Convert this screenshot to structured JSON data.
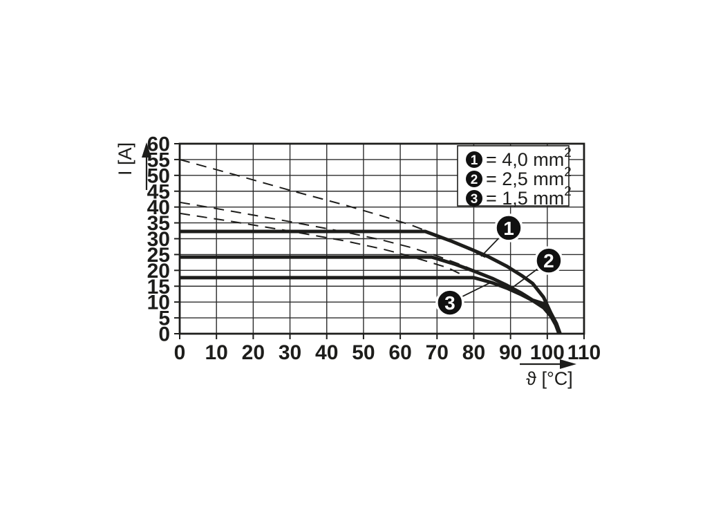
{
  "figure": {
    "background": "#ffffff",
    "ink_color": "#1d1d1b"
  },
  "chart_data": {
    "type": "line",
    "title": "",
    "xlabel": "ϑ [°C]",
    "ylabel": "I [A]",
    "xlim": [
      0,
      110
    ],
    "ylim": [
      0,
      60
    ],
    "x_ticks": [
      0,
      10,
      20,
      30,
      40,
      50,
      60,
      70,
      80,
      90,
      100,
      110
    ],
    "y_ticks": [
      0,
      5,
      10,
      15,
      20,
      25,
      30,
      35,
      40,
      45,
      50,
      55,
      60
    ],
    "grid": true,
    "legend": {
      "position": "top-right",
      "entries": [
        {
          "marker": "1",
          "text": "= 4,0 mm",
          "sup": "2"
        },
        {
          "marker": "2",
          "text": "= 2,5 mm",
          "sup": "2"
        },
        {
          "marker": "3",
          "text": "= 1,5 mm",
          "sup": "2"
        }
      ]
    },
    "series": [
      {
        "name": "curve-1-4,0mm2",
        "rated_current_A": 32,
        "style": "solid",
        "points": [
          [
            0,
            32.3
          ],
          [
            66.8,
            32.3
          ],
          [
            74,
            29.2
          ],
          [
            79,
            26.8
          ],
          [
            84,
            24.3
          ],
          [
            89,
            21.3
          ],
          [
            93,
            18.4
          ],
          [
            96,
            15.9
          ],
          [
            99,
            11.5
          ],
          [
            101,
            6.5
          ],
          [
            102.5,
            3.2
          ],
          [
            103.5,
            0
          ]
        ]
      },
      {
        "name": "curve-2-2,5mm2",
        "rated_current_A": 24,
        "style": "solid",
        "points": [
          [
            0,
            24.2
          ],
          [
            68.6,
            24.2
          ],
          [
            75,
            21.9
          ],
          [
            80,
            19.8
          ],
          [
            85,
            17.5
          ],
          [
            89,
            15.3
          ],
          [
            93,
            12.8
          ],
          [
            96,
            10.6
          ],
          [
            99,
            9.5
          ],
          [
            101,
            6.0
          ],
          [
            102.3,
            3.0
          ],
          [
            103.3,
            0
          ]
        ]
      },
      {
        "name": "curve-3-1,5mm2",
        "rated_current_A": 17.5,
        "style": "solid",
        "points": [
          [
            0,
            17.7
          ],
          [
            80,
            17.7
          ],
          [
            85,
            16.1
          ],
          [
            89,
            14.4
          ],
          [
            93,
            12.3
          ],
          [
            96,
            10.5
          ],
          [
            99,
            8.2
          ],
          [
            101,
            5.5
          ],
          [
            102.3,
            2.8
          ],
          [
            103.2,
            0
          ]
        ]
      },
      {
        "name": "dashed-upper",
        "style": "dashed",
        "points": [
          [
            0,
            55
          ],
          [
            15,
            50.2
          ],
          [
            30,
            45.3
          ],
          [
            45,
            40.6
          ],
          [
            55,
            37.2
          ],
          [
            63,
            34.3
          ],
          [
            70,
            31.2
          ],
          [
            76,
            28.1
          ],
          [
            81,
            25.3
          ],
          [
            84,
            23.7
          ]
        ]
      },
      {
        "name": "dashed-middle",
        "style": "dashed",
        "points": [
          [
            0,
            41.5
          ],
          [
            15,
            38.5
          ],
          [
            30,
            35.4
          ],
          [
            45,
            32.1
          ],
          [
            55,
            29.6
          ],
          [
            63,
            27.2
          ],
          [
            70,
            24.6
          ],
          [
            76,
            22.0
          ],
          [
            80,
            20.1
          ]
        ]
      },
      {
        "name": "dashed-lower",
        "style": "dashed",
        "points": [
          [
            0,
            38.0
          ],
          [
            15,
            35.3
          ],
          [
            30,
            32.4
          ],
          [
            45,
            29.3
          ],
          [
            55,
            26.8
          ],
          [
            62,
            24.7
          ],
          [
            68,
            22.6
          ],
          [
            73,
            20.8
          ],
          [
            77,
            18.5
          ]
        ]
      }
    ],
    "callouts": [
      {
        "label": "1",
        "at": [
          89.5,
          33.4
        ],
        "to": [
          82.0,
          24.4
        ]
      },
      {
        "label": "2",
        "at": [
          100.4,
          23.1
        ],
        "to": [
          90.3,
          14.4
        ]
      },
      {
        "label": "3",
        "at": [
          73.5,
          9.8
        ],
        "to": [
          85.0,
          16.4
        ]
      }
    ]
  }
}
